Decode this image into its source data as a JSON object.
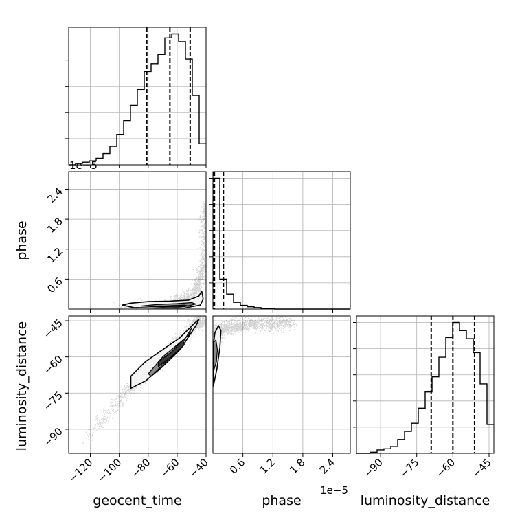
{
  "chart_data": {
    "type": "corner",
    "parameters": [
      "geocent_time",
      "phase",
      "luminosity_distance"
    ],
    "axis_labels": {
      "geocent_time": "geocent_time",
      "phase": "phase",
      "luminosity_distance": "luminosity_distance"
    },
    "ranges": {
      "geocent_time": [
        -135,
        -40
      ],
      "phase": [
        0,
        2.75e-05
      ],
      "luminosity_distance": [
        -100,
        -43
      ]
    },
    "ticks": {
      "geocent_time": {
        "values": [
          -120,
          -100,
          -80,
          -60,
          -40
        ],
        "labels": [
          "−120",
          "−100",
          "−80",
          "−60",
          "−40"
        ]
      },
      "phase": {
        "values": [
          6e-06,
          1.2e-05,
          1.8e-05,
          2.4e-05
        ],
        "labels": [
          "0.6",
          "1.2",
          "1.8",
          "2.4"
        ],
        "offset": "1e−5"
      },
      "luminosity_distance": {
        "values": [
          -90,
          -75,
          -60,
          -45
        ],
        "labels": [
          "−90",
          "−75",
          "−60",
          "−45"
        ]
      }
    },
    "histograms": {
      "geocent_time": {
        "bin_edges": [
          -135,
          -130.25,
          -125.5,
          -120.75,
          -116,
          -111.25,
          -106.5,
          -101.75,
          -97,
          -92.25,
          -87.5,
          -82.75,
          -78,
          -73.25,
          -68.5,
          -63.75,
          -59,
          -54.25,
          -49.5,
          -44.75,
          -40
        ],
        "counts": [
          0,
          2,
          4,
          6,
          10,
          17,
          28,
          46,
          67,
          90,
          114,
          141,
          153,
          167,
          192,
          198,
          187,
          160,
          105,
          32
        ],
        "quantiles": [
          -81,
          -65,
          -51
        ]
      },
      "phase": {
        "bin_edges": [
          0,
          1.375e-06,
          2.75e-06,
          4.125e-06,
          5.5e-06,
          6.875e-06,
          8.25e-06,
          9.625e-06,
          1.1e-05,
          1.2375e-05,
          1.375e-05,
          1.5125e-05,
          1.65e-05,
          1.7875e-05,
          1.925e-05,
          2.0625e-05,
          2.2e-05,
          2.3375e-05,
          2.475e-05,
          2.6125e-05,
          2.75e-05
        ],
        "counts": [
          175,
          40,
          20,
          9,
          5,
          3,
          2,
          1,
          1,
          0,
          0,
          0,
          0,
          0,
          0,
          0,
          0,
          0,
          0,
          0
        ],
        "quantiles": [
          1.5e-07,
          3e-07,
          2.1e-06
        ]
      },
      "luminosity_distance": {
        "bin_edges": [
          -100,
          -97.15,
          -94.3,
          -91.45,
          -88.6,
          -85.75,
          -82.9,
          -80.05,
          -77.2,
          -74.35,
          -71.5,
          -68.65,
          -65.8,
          -62.95,
          -60.1,
          -57.25,
          -54.4,
          -51.55,
          -48.7,
          -45.85,
          -43
        ],
        "counts": [
          0,
          0,
          1,
          3,
          4,
          6,
          12,
          19,
          26,
          39,
          53,
          66,
          83,
          100,
          113,
          106,
          99,
          87,
          60,
          25
        ],
        "quantiles": [
          -69,
          -60,
          -51
        ]
      }
    },
    "pair_panels": [
      {
        "x": "geocent_time",
        "y": "phase",
        "scatter_trend": [
          [
            -105,
            3e-07
          ],
          [
            -95,
            4e-07
          ],
          [
            -85,
            6e-07
          ],
          [
            -75,
            8e-07
          ],
          [
            -65,
            1.1e-06
          ],
          [
            -58,
            1.6e-06
          ],
          [
            -52,
            2.4e-06
          ],
          [
            -47,
            3.8e-06
          ],
          [
            -44,
            6.2e-06
          ],
          [
            -42,
            9e-06
          ],
          [
            -41,
            1.6e-05
          ],
          [
            -40.5,
            2.1e-05
          ]
        ],
        "contours": [
          [
            [
              -98,
              8e-07
            ],
            [
              -92,
              1.2e-06
            ],
            [
              -80,
              1.5e-06
            ],
            [
              -65,
              1.6e-06
            ],
            [
              -52,
              1.8e-06
            ],
            [
              -45,
              2.6e-06
            ],
            [
              -43,
              3.6e-06
            ],
            [
              -42,
              2e-06
            ],
            [
              -44,
              8e-07
            ],
            [
              -55,
              2e-07
            ],
            [
              -75,
              2e-07
            ],
            [
              -90,
              3e-07
            ],
            [
              -98,
              8e-07
            ]
          ],
          [
            [
              -85,
              6e-07
            ],
            [
              -75,
              9e-07
            ],
            [
              -60,
              1.1e-06
            ],
            [
              -50,
              1.3e-06
            ],
            [
              -47,
              1e-06
            ],
            [
              -55,
              5e-07
            ],
            [
              -70,
              4e-07
            ],
            [
              -85,
              6e-07
            ]
          ],
          [
            [
              -73,
              5e-07
            ],
            [
              -63,
              7e-07
            ],
            [
              -55,
              8e-07
            ],
            [
              -52,
              6e-07
            ],
            [
              -60,
              4e-07
            ],
            [
              -73,
              5e-07
            ]
          ]
        ]
      },
      {
        "x": "geocent_time",
        "y": "luminosity_distance",
        "scatter_trend": [
          [
            -125,
            -96
          ],
          [
            -115,
            -88
          ],
          [
            -105,
            -81
          ],
          [
            -95,
            -74
          ],
          [
            -85,
            -69
          ],
          [
            -75,
            -63
          ],
          [
            -65,
            -57
          ],
          [
            -55,
            -51
          ],
          [
            -47,
            -46
          ],
          [
            -43,
            -44
          ]
        ],
        "contours": [
          [
            [
              -92,
              -68
            ],
            [
              -82,
              -62
            ],
            [
              -70,
              -57
            ],
            [
              -58,
              -52
            ],
            [
              -48,
              -46
            ],
            [
              -45,
              -44.5
            ],
            [
              -47,
              -47
            ],
            [
              -58,
              -57
            ],
            [
              -70,
              -64
            ],
            [
              -82,
              -70
            ],
            [
              -92,
              -73
            ],
            [
              -92,
              -68
            ]
          ],
          [
            [
              -80,
              -67
            ],
            [
              -70,
              -60
            ],
            [
              -60,
              -55
            ],
            [
              -52,
              -51
            ],
            [
              -50,
              -48
            ],
            [
              -56,
              -54
            ],
            [
              -66,
              -61
            ],
            [
              -78,
              -68
            ],
            [
              -80,
              -67
            ]
          ],
          [
            [
              -73,
              -62
            ],
            [
              -64,
              -58
            ],
            [
              -56,
              -53
            ],
            [
              -55,
              -55
            ],
            [
              -64,
              -60
            ],
            [
              -73,
              -64
            ],
            [
              -73,
              -62
            ]
          ]
        ]
      },
      {
        "x": "phase",
        "y": "luminosity_distance",
        "scatter_trend": [
          [
            1e-07,
            -56
          ],
          [
            3e-07,
            -52
          ],
          [
            8e-07,
            -50
          ],
          [
            1.5e-06,
            -48.5
          ],
          [
            3e-06,
            -47.5
          ],
          [
            5e-06,
            -47
          ],
          [
            8e-06,
            -46.5
          ],
          [
            1.2e-05,
            -46
          ],
          [
            1.6e-05,
            -45.5
          ]
        ],
        "contours": [
          [
            [
              1e-07,
              -72
            ],
            [
              8e-07,
              -65
            ],
            [
              1.4e-06,
              -56
            ],
            [
              1.6e-06,
              -49
            ],
            [
              1.1e-06,
              -47
            ],
            [
              4e-07,
              -50
            ],
            [
              1e-07,
              -55
            ],
            [
              1e-07,
              -72
            ]
          ],
          [
            [
              1e-07,
              -66
            ],
            [
              7e-07,
              -62
            ],
            [
              9e-07,
              -57
            ],
            [
              6e-07,
              -53
            ],
            [
              1e-07,
              -54
            ],
            [
              1e-07,
              -66
            ]
          ]
        ]
      }
    ]
  }
}
